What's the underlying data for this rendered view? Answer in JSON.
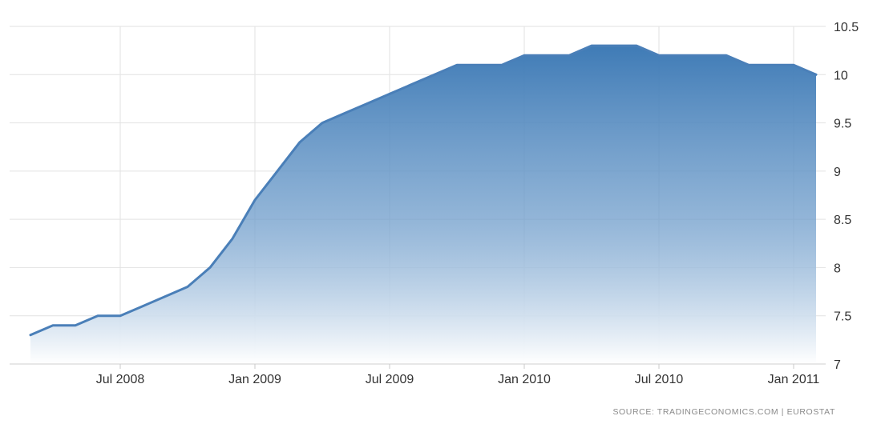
{
  "chart_data": {
    "type": "area",
    "title": "",
    "xlabel": "",
    "ylabel": "",
    "ylim": [
      7,
      10.5
    ],
    "y_ticks": [
      "10.5",
      "10",
      "9.5",
      "9",
      "8.5",
      "8",
      "7.5",
      "7"
    ],
    "x_ticks": [
      {
        "date": "2008-07",
        "label": "Jul 2008"
      },
      {
        "date": "2009-01",
        "label": "Jan 2009"
      },
      {
        "date": "2009-07",
        "label": "Jul 2009"
      },
      {
        "date": "2010-01",
        "label": "Jan 2010"
      },
      {
        "date": "2010-07",
        "label": "Jul 2010"
      },
      {
        "date": "2011-01",
        "label": "Jan 2011"
      }
    ],
    "grid": true,
    "y_axis_position": "right",
    "x": [
      "2008-03",
      "2008-04",
      "2008-05",
      "2008-06",
      "2008-07",
      "2008-08",
      "2008-09",
      "2008-10",
      "2008-11",
      "2008-12",
      "2009-01",
      "2009-02",
      "2009-03",
      "2009-04",
      "2009-05",
      "2009-06",
      "2009-07",
      "2009-08",
      "2009-09",
      "2009-10",
      "2009-11",
      "2009-12",
      "2010-01",
      "2010-02",
      "2010-03",
      "2010-04",
      "2010-05",
      "2010-06",
      "2010-07",
      "2010-08",
      "2010-09",
      "2010-10",
      "2010-11",
      "2010-12",
      "2011-01",
      "2011-02"
    ],
    "series": [
      {
        "values": [
          7.3,
          7.4,
          7.4,
          7.5,
          7.5,
          7.6,
          7.7,
          7.8,
          8.0,
          8.3,
          8.7,
          9.0,
          9.3,
          9.5,
          9.6,
          9.7,
          9.8,
          9.9,
          10.0,
          10.1,
          10.1,
          10.1,
          10.2,
          10.2,
          10.2,
          10.3,
          10.3,
          10.3,
          10.2,
          10.2,
          10.2,
          10.2,
          10.1,
          10.1,
          10.1,
          10.0
        ]
      }
    ],
    "colors": {
      "line": "#4a7fb8",
      "fill_top": "#3f7bb6",
      "fill_bottom": "#ffffff",
      "grid": "#e2e2e2"
    },
    "source": "SOURCE:  TRADINGECONOMICS.COM  |  EUROSTAT"
  }
}
